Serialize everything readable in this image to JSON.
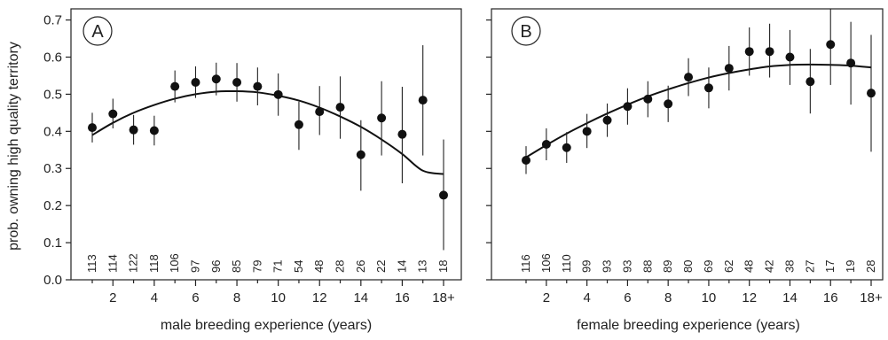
{
  "chart_data": [
    {
      "type": "scatter",
      "panel_label": "A",
      "xlabel": "male breeding experience (years)",
      "ylabel": "prob. owning high quality territory",
      "ylim": [
        0,
        0.73
      ],
      "yticks": [
        0.0,
        0.1,
        0.2,
        0.3,
        0.4,
        0.5,
        0.6,
        0.7
      ],
      "ytick_labels": [
        "0.0",
        "0.1",
        "0.2",
        "0.3",
        "0.4",
        "0.5",
        "0.6",
        "0.7"
      ],
      "x": [
        1,
        2,
        3,
        4,
        5,
        6,
        7,
        8,
        9,
        10,
        11,
        12,
        13,
        14,
        15,
        16,
        17,
        18
      ],
      "xtick_positions": [
        2,
        4,
        6,
        8,
        10,
        12,
        14,
        16,
        18
      ],
      "xtick_labels": [
        "2",
        "4",
        "6",
        "8",
        "10",
        "12",
        "14",
        "16",
        "18+"
      ],
      "series": [
        {
          "values": [
            0.41,
            0.447,
            0.404,
            0.402,
            0.521,
            0.532,
            0.541,
            0.532,
            0.521,
            0.499,
            0.418,
            0.453,
            0.465,
            0.337,
            0.436,
            0.392,
            0.484,
            0.228
          ],
          "lower": [
            0.37,
            0.408,
            0.364,
            0.362,
            0.478,
            0.49,
            0.497,
            0.48,
            0.47,
            0.442,
            0.35,
            0.39,
            0.38,
            0.24,
            0.335,
            0.26,
            0.335,
            0.08
          ],
          "upper": [
            0.45,
            0.488,
            0.444,
            0.442,
            0.564,
            0.575,
            0.585,
            0.584,
            0.572,
            0.556,
            0.48,
            0.522,
            0.548,
            0.43,
            0.535,
            0.52,
            0.632,
            0.378
          ],
          "n": [
            "113",
            "114",
            "122",
            "118",
            "106",
            "97",
            "96",
            "85",
            "79",
            "71",
            "54",
            "48",
            "28",
            "26",
            "22",
            "14",
            "13",
            "18"
          ]
        }
      ],
      "fit_curve": {
        "x": [
          1,
          2,
          3,
          4,
          5,
          6,
          7,
          8,
          9,
          10,
          11,
          12,
          13,
          14,
          15,
          16,
          17,
          18
        ],
        "y": [
          0.39,
          0.423,
          0.45,
          0.471,
          0.488,
          0.5,
          0.507,
          0.508,
          0.505,
          0.496,
          0.483,
          0.464,
          0.44,
          0.412,
          0.378,
          0.339,
          0.294,
          0.285
        ]
      }
    },
    {
      "type": "scatter",
      "panel_label": "B",
      "xlabel": "female breeding experience (years)",
      "ylabel": "",
      "ylim": [
        0,
        0.73
      ],
      "yticks": [
        0.0,
        0.1,
        0.2,
        0.3,
        0.4,
        0.5,
        0.6,
        0.7
      ],
      "ytick_labels": [],
      "x": [
        1,
        2,
        3,
        4,
        5,
        6,
        7,
        8,
        9,
        10,
        11,
        12,
        13,
        14,
        15,
        16,
        17,
        18
      ],
      "xtick_positions": [
        2,
        4,
        6,
        8,
        10,
        12,
        14,
        16,
        18
      ],
      "xtick_labels": [
        "2",
        "4",
        "6",
        "8",
        "10",
        "12",
        "14",
        "16",
        "18+"
      ],
      "series": [
        {
          "values": [
            0.322,
            0.365,
            0.356,
            0.4,
            0.43,
            0.467,
            0.487,
            0.474,
            0.546,
            0.517,
            0.57,
            0.615,
            0.615,
            0.6,
            0.534,
            0.634,
            0.584,
            0.503
          ],
          "lower": [
            0.285,
            0.322,
            0.315,
            0.355,
            0.385,
            0.418,
            0.438,
            0.425,
            0.495,
            0.462,
            0.51,
            0.55,
            0.545,
            0.525,
            0.448,
            0.525,
            0.472,
            0.345
          ],
          "upper": [
            0.36,
            0.408,
            0.398,
            0.447,
            0.475,
            0.516,
            0.535,
            0.523,
            0.597,
            0.572,
            0.63,
            0.68,
            0.69,
            0.673,
            0.622,
            0.745,
            0.695,
            0.66
          ],
          "n": [
            "116",
            "106",
            "110",
            "99",
            "93",
            "93",
            "88",
            "89",
            "80",
            "69",
            "62",
            "48",
            "42",
            "38",
            "27",
            "17",
            "19",
            "28"
          ]
        }
      ],
      "fit_curve": {
        "x": [
          1,
          2,
          3,
          4,
          5,
          6,
          7,
          8,
          9,
          10,
          11,
          12,
          13,
          14,
          15,
          16,
          17,
          18
        ],
        "y": [
          0.33,
          0.363,
          0.394,
          0.422,
          0.448,
          0.472,
          0.494,
          0.513,
          0.53,
          0.545,
          0.557,
          0.567,
          0.575,
          0.579,
          0.58,
          0.579,
          0.577,
          0.572
        ]
      }
    }
  ]
}
